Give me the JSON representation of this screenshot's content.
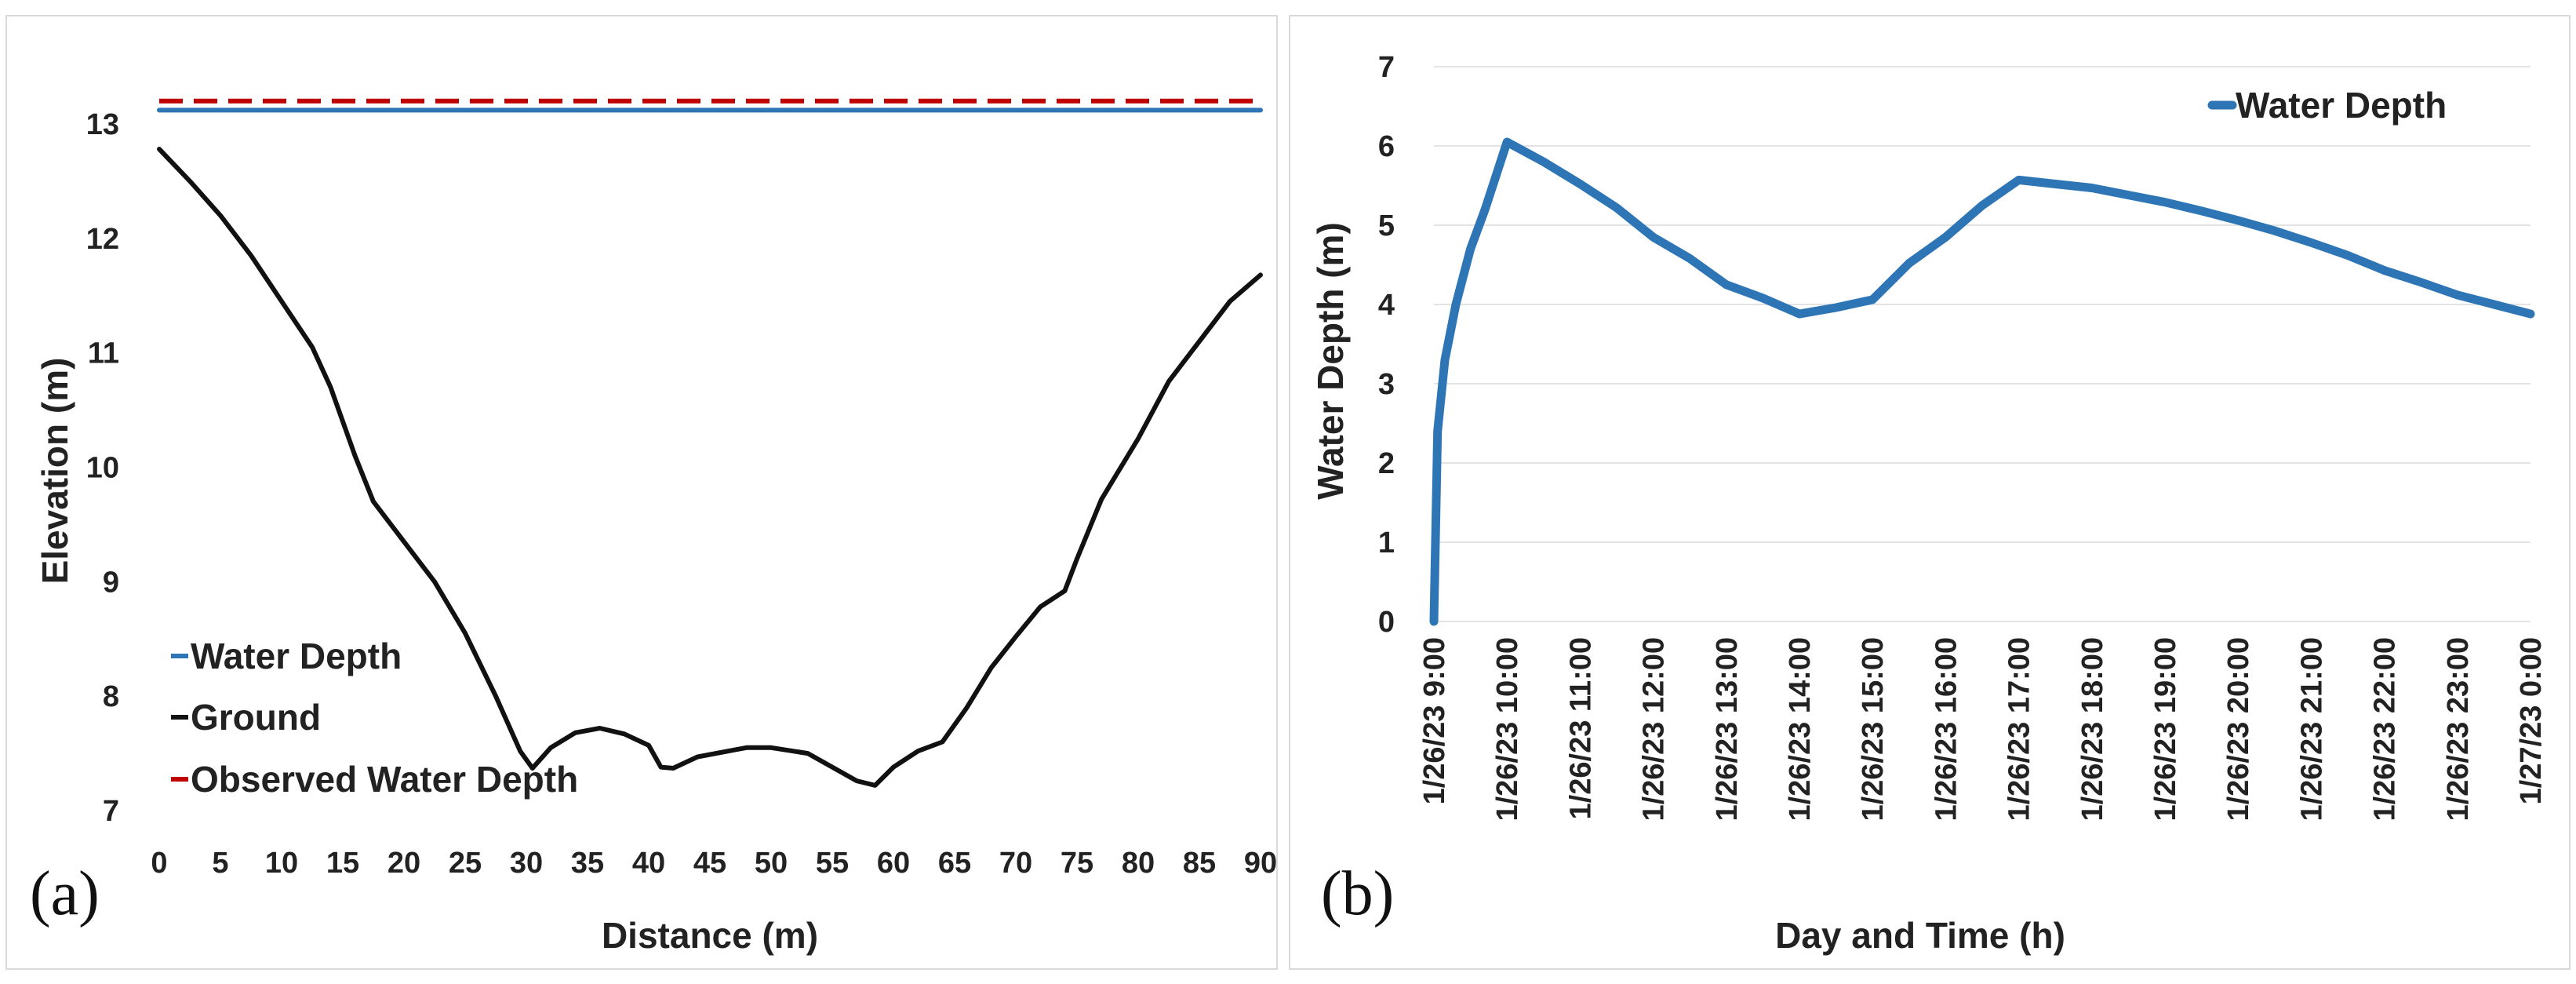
{
  "chart_data": [
    {
      "type": "line",
      "panel_label": "(a)",
      "xlabel": "Distance (m)",
      "ylabel": "Elevation (m)",
      "xlim": [
        0,
        90
      ],
      "ylim": [
        7,
        13.5
      ],
      "x_ticks": [
        0,
        5,
        10,
        15,
        20,
        25,
        30,
        35,
        40,
        45,
        50,
        55,
        60,
        65,
        70,
        75,
        80,
        85,
        90
      ],
      "y_ticks": [
        7,
        8,
        9,
        10,
        11,
        12,
        13
      ],
      "grid": false,
      "legend_position": "bottom-left",
      "series": [
        {
          "name": "Water Depth",
          "color": "#2e75b6",
          "style": "solid",
          "points": [
            [
              0,
              13.12
            ],
            [
              90,
              13.12
            ]
          ]
        },
        {
          "name": "Ground",
          "color": "#111111",
          "style": "solid",
          "points": [
            [
              0,
              12.78
            ],
            [
              2.5,
              12.5
            ],
            [
              5,
              12.2
            ],
            [
              7.5,
              11.85
            ],
            [
              10,
              11.45
            ],
            [
              12.5,
              11.05
            ],
            [
              14,
              10.7
            ],
            [
              16,
              10.1
            ],
            [
              17.5,
              9.7
            ],
            [
              20,
              9.35
            ],
            [
              22.5,
              9.0
            ],
            [
              25,
              8.55
            ],
            [
              27.5,
              8.0
            ],
            [
              29.5,
              7.52
            ],
            [
              30.5,
              7.37
            ],
            [
              32,
              7.55
            ],
            [
              34,
              7.68
            ],
            [
              36,
              7.72
            ],
            [
              38,
              7.67
            ],
            [
              40,
              7.57
            ],
            [
              41,
              7.38
            ],
            [
              42,
              7.37
            ],
            [
              44,
              7.47
            ],
            [
              47,
              7.53
            ],
            [
              48,
              7.55
            ],
            [
              50,
              7.55
            ],
            [
              53,
              7.5
            ],
            [
              55,
              7.38
            ],
            [
              57,
              7.26
            ],
            [
              58.5,
              7.22
            ],
            [
              60,
              7.38
            ],
            [
              62,
              7.52
            ],
            [
              64,
              7.6
            ],
            [
              66,
              7.9
            ],
            [
              68,
              8.25
            ],
            [
              70,
              8.52
            ],
            [
              72,
              8.78
            ],
            [
              74,
              8.92
            ],
            [
              75,
              9.2
            ],
            [
              77,
              9.72
            ],
            [
              80,
              10.25
            ],
            [
              82.5,
              10.75
            ],
            [
              85,
              11.1
            ],
            [
              87.5,
              11.45
            ],
            [
              90,
              11.68
            ]
          ]
        },
        {
          "name": "Observed Water Depth",
          "color": "#c00000",
          "style": "dashed",
          "points": [
            [
              0,
              13.2
            ],
            [
              90,
              13.2
            ]
          ]
        }
      ]
    },
    {
      "type": "line",
      "panel_label": "(b)",
      "xlabel": "Day and Time (h)",
      "ylabel": "Water Depth (m)",
      "ylim": [
        0,
        7
      ],
      "y_ticks": [
        0,
        1,
        2,
        3,
        4,
        5,
        6,
        7
      ],
      "grid": true,
      "legend_position": "top-right",
      "categories": [
        "1/26/23 9:00",
        "1/26/23 10:00",
        "1/26/23 11:00",
        "1/26/23 12:00",
        "1/26/23 13:00",
        "1/26/23 14:00",
        "1/26/23 15:00",
        "1/26/23 16:00",
        "1/26/23 17:00",
        "1/26/23 18:00",
        "1/26/23 19:00",
        "1/26/23 20:00",
        "1/26/23 21:00",
        "1/26/23 22:00",
        "1/26/23 23:00",
        "1/27/23 0:00"
      ],
      "series": [
        {
          "name": "Water Depth",
          "color": "#2e75b6",
          "points_hours": [
            [
              0,
              0
            ],
            [
              0.05,
              2.4
            ],
            [
              0.15,
              3.3
            ],
            [
              0.3,
              4.0
            ],
            [
              0.5,
              4.7
            ],
            [
              0.7,
              5.2
            ],
            [
              1,
              6.05
            ],
            [
              1.5,
              5.8
            ],
            [
              2,
              5.52
            ],
            [
              2.5,
              5.22
            ],
            [
              3,
              4.85
            ],
            [
              3.5,
              4.58
            ],
            [
              4,
              4.25
            ],
            [
              4.5,
              4.08
            ],
            [
              5,
              3.88
            ],
            [
              5.5,
              3.96
            ],
            [
              6,
              4.06
            ],
            [
              6.5,
              4.52
            ],
            [
              7,
              4.85
            ],
            [
              7.5,
              5.25
            ],
            [
              8,
              5.57
            ],
            [
              8.5,
              5.52
            ],
            [
              9,
              5.47
            ],
            [
              9.5,
              5.38
            ],
            [
              10,
              5.29
            ],
            [
              10.5,
              5.18
            ],
            [
              11,
              5.06
            ],
            [
              11.5,
              4.93
            ],
            [
              12,
              4.78
            ],
            [
              12.5,
              4.62
            ],
            [
              13,
              4.43
            ],
            [
              13.5,
              4.28
            ],
            [
              14,
              4.12
            ],
            [
              14.5,
              4.0
            ],
            [
              15,
              3.88
            ]
          ]
        }
      ]
    }
  ]
}
